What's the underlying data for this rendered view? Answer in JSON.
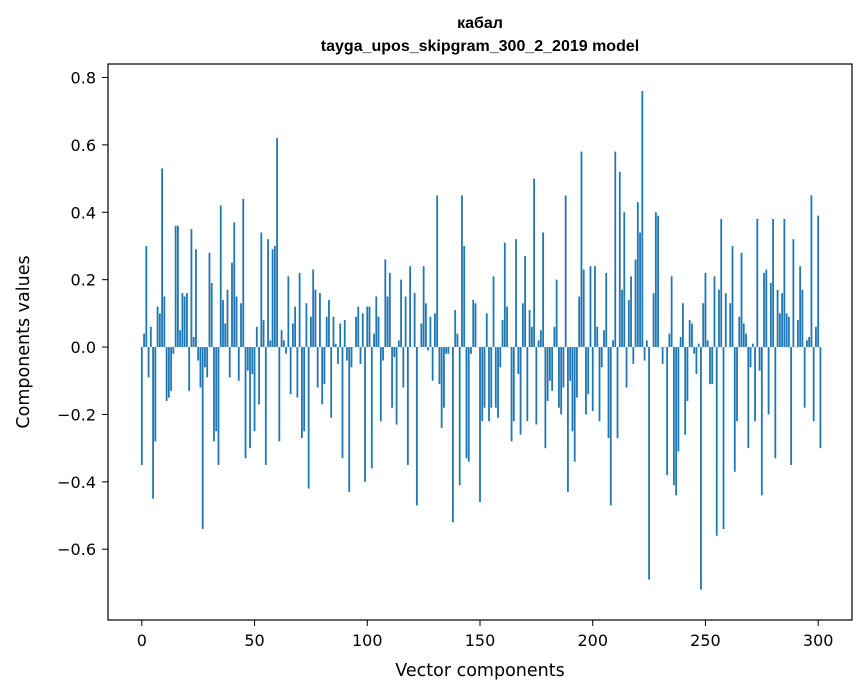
{
  "chart_data": {
    "type": "bar",
    "title": "кабал",
    "subtitle": "tayga_upos_skipgram_300_2_2019 model",
    "xlabel": "Vector components",
    "ylabel": "Components values",
    "xlim": [
      -15,
      315
    ],
    "ylim": [
      -0.81,
      0.84
    ],
    "x_ticks": [
      0,
      50,
      100,
      150,
      200,
      250,
      300
    ],
    "y_ticks": [
      -0.6,
      -0.4,
      -0.2,
      0.0,
      0.2,
      0.4,
      0.6,
      0.8
    ],
    "y_tick_labels": [
      "−0.6",
      "−0.4",
      "−0.2",
      "0.0",
      "0.2",
      "0.4",
      "0.6",
      "0.8"
    ],
    "bar_color": "#1f77b4",
    "grid": false,
    "values": [
      -0.35,
      0.04,
      0.3,
      -0.09,
      0.06,
      -0.45,
      -0.28,
      0.12,
      0.1,
      0.53,
      0.15,
      -0.16,
      -0.15,
      -0.13,
      -0.02,
      0.36,
      0.36,
      0.05,
      0.16,
      0.15,
      0.16,
      -0.13,
      0.35,
      0.03,
      0.29,
      -0.04,
      -0.12,
      -0.54,
      -0.06,
      -0.09,
      0.28,
      0.19,
      -0.28,
      -0.25,
      -0.35,
      0.42,
      0.14,
      0.07,
      0.17,
      -0.09,
      0.25,
      0.37,
      0.15,
      -0.1,
      0.13,
      0.44,
      -0.33,
      -0.07,
      -0.3,
      -0.08,
      -0.25,
      0.06,
      -0.17,
      0.34,
      0.08,
      -0.35,
      0.32,
      0.02,
      0.29,
      0.3,
      0.62,
      -0.28,
      0.05,
      0.02,
      -0.02,
      0.21,
      -0.14,
      0.07,
      0.12,
      -0.15,
      0.22,
      -0.27,
      -0.25,
      0.13,
      -0.42,
      0.09,
      0.23,
      0.17,
      -0.12,
      0.16,
      -0.17,
      -0.11,
      0.09,
      0.14,
      -0.21,
      0.09,
      0.01,
      -0.05,
      0.07,
      -0.33,
      0.08,
      -0.04,
      -0.43,
      -0.06,
      0.0,
      0.09,
      0.12,
      -0.05,
      0.1,
      -0.4,
      0.12,
      0.12,
      -0.36,
      0.04,
      0.15,
      0.09,
      -0.22,
      -0.04,
      0.26,
      0.15,
      0.22,
      -0.18,
      -0.03,
      -0.23,
      0.02,
      0.2,
      -0.12,
      0.15,
      -0.35,
      0.24,
      0.0,
      0.16,
      -0.47,
      0.0,
      0.07,
      0.24,
      0.13,
      -0.01,
      0.09,
      -0.1,
      0.1,
      0.45,
      -0.11,
      -0.24,
      -0.18,
      -0.02,
      -0.02,
      0.0,
      -0.52,
      0.11,
      0.04,
      -0.41,
      0.45,
      0.3,
      -0.33,
      -0.34,
      -0.02,
      0.14,
      0.13,
      0.0,
      -0.46,
      -0.22,
      -0.18,
      0.1,
      -0.22,
      -0.18,
      0.21,
      -0.18,
      -0.21,
      -0.06,
      0.08,
      0.31,
      0.12,
      0.0,
      -0.28,
      -0.22,
      0.32,
      -0.08,
      -0.26,
      0.13,
      0.27,
      -0.22,
      0.11,
      0.06,
      0.5,
      -0.23,
      0.02,
      0.05,
      0.34,
      -0.3,
      -0.16,
      -0.1,
      -0.13,
      0.06,
      0.2,
      -0.18,
      -0.2,
      -0.12,
      0.45,
      -0.43,
      -0.1,
      -0.25,
      -0.34,
      -0.15,
      0.15,
      0.58,
      0.23,
      -0.2,
      -0.14,
      0.24,
      -0.19,
      0.24,
      0.06,
      -0.22,
      -0.06,
      0.05,
      0.22,
      -0.27,
      -0.47,
      0.02,
      0.58,
      -0.27,
      0.52,
      0.17,
      0.4,
      -0.12,
      0.14,
      0.21,
      -0.05,
      0.26,
      0.43,
      0.34,
      0.76,
      -0.04,
      0.02,
      -0.69,
      0.0,
      0.16,
      0.4,
      0.39,
      0.0,
      -0.05,
      0.0,
      -0.38,
      0.04,
      0.21,
      -0.41,
      -0.44,
      -0.31,
      0.03,
      0.13,
      -0.26,
      -0.16,
      0.08,
      0.07,
      -0.02,
      -0.08,
      0.01,
      -0.72,
      0.13,
      0.22,
      0.02,
      -0.11,
      -0.11,
      0.21,
      -0.56,
      0.17,
      0.38,
      -0.54,
      0.16,
      0.0,
      0.13,
      0.3,
      -0.37,
      -0.22,
      0.09,
      0.28,
      0.07,
      0.04,
      -0.3,
      -0.06,
      0.01,
      -0.22,
      0.38,
      -0.07,
      -0.44,
      0.22,
      0.23,
      -0.2,
      0.19,
      0.38,
      -0.33,
      0.17,
      0.1,
      0.16,
      0.38,
      0.1,
      0.09,
      -0.35,
      0.32,
      0.0,
      0.08,
      0.24,
      0.17,
      -0.18,
      0.02,
      0.03,
      0.45,
      -0.22,
      0.06,
      0.39,
      -0.3
    ]
  }
}
